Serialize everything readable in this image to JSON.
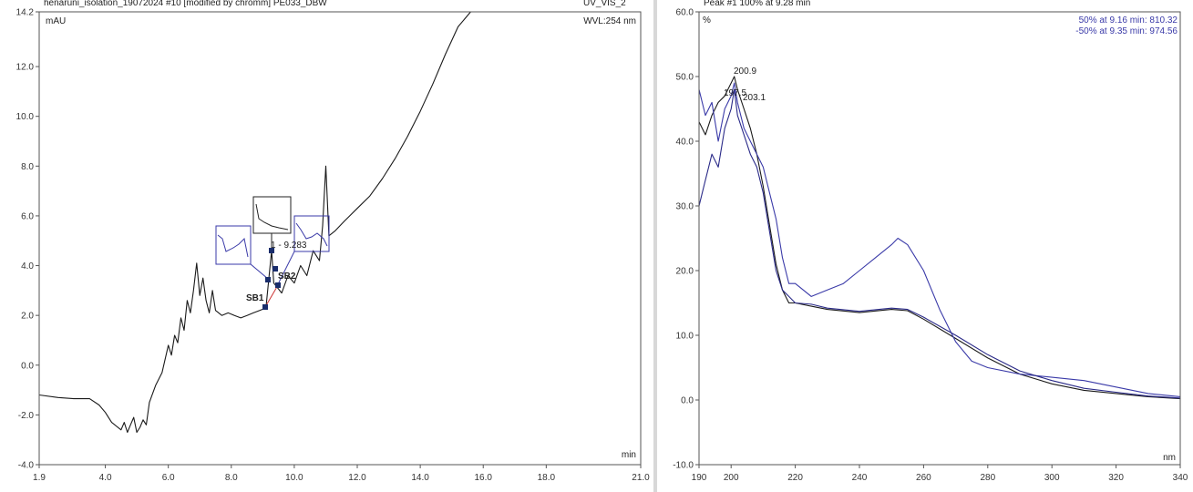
{
  "left_panel": {
    "header_text": "henaruni_isolation_19072024 #10 [modified by chromm]   PE033_DBW",
    "header_right": "UV_VIS_2",
    "y_unit": "mAU",
    "wavelength": "WVL:254 nm",
    "x_unit": "min",
    "peak_label": "1 - 9.283",
    "sb1_label": "SB1",
    "sb2_label": "SB2"
  },
  "right_panel": {
    "header_text": "Peak #1  100% at 9.28 min",
    "y_unit": "%",
    "x_unit": "nm",
    "legend": [
      {
        "text": "50% at 9.16 min:  810.32",
        "color": "#3a3aa8"
      },
      {
        "text": "-50% at 9.35 min:  974.56",
        "color": "#3a3aa8"
      }
    ],
    "peak_annotations": [
      "200.9",
      "197.5",
      "203.1"
    ]
  },
  "chart_data": [
    {
      "type": "line",
      "xlim": [
        1.9,
        21.0
      ],
      "ylim": [
        -4.0,
        14.2
      ],
      "x_ticks": [
        "1.9",
        "4.0",
        "6.0",
        "8.0",
        "10.0",
        "12.0",
        "14.0",
        "16.0",
        "18.0",
        "21.0"
      ],
      "x_tick_values": [
        1.9,
        4.0,
        6.0,
        8.0,
        10.0,
        12.0,
        14.0,
        16.0,
        18.0,
        21.0
      ],
      "y_ticks": [
        "-4.0",
        "-2.0",
        "0.0",
        "2.0",
        "4.0",
        "6.0",
        "8.0",
        "10.0",
        "12.0",
        "14.2"
      ],
      "y_tick_values": [
        -4.0,
        -2.0,
        0.0,
        2.0,
        4.0,
        6.0,
        8.0,
        10.0,
        12.0,
        14.2
      ],
      "series": [
        {
          "x": [
            1.9,
            2.5,
            3.0,
            3.5,
            3.8,
            4.0,
            4.2,
            4.5,
            4.6,
            4.7,
            4.8,
            4.9,
            5.0,
            5.1,
            5.2,
            5.3,
            5.4,
            5.6,
            5.8,
            6.0,
            6.1,
            6.2,
            6.3,
            6.4,
            6.5,
            6.6,
            6.7,
            6.8,
            6.9,
            7.0,
            7.1,
            7.2,
            7.3,
            7.4,
            7.5,
            7.7,
            7.9,
            8.1,
            8.3,
            8.5,
            8.7,
            8.9,
            9.1,
            9.28,
            9.35,
            9.6,
            9.8,
            10.0,
            10.2,
            10.4,
            10.6,
            10.8,
            10.9,
            11.0,
            11.1,
            11.3,
            11.6,
            12.0,
            12.4,
            12.8,
            13.2,
            13.6,
            14.0,
            14.4,
            14.8,
            15.2,
            15.6
          ],
          "y": [
            -1.2,
            -1.3,
            -1.35,
            -1.35,
            -1.6,
            -1.9,
            -2.3,
            -2.6,
            -2.3,
            -2.7,
            -2.4,
            -2.1,
            -2.7,
            -2.5,
            -2.2,
            -2.4,
            -1.5,
            -0.8,
            -0.3,
            0.8,
            0.4,
            1.2,
            0.9,
            1.9,
            1.4,
            2.6,
            2.1,
            3.0,
            4.1,
            2.8,
            3.5,
            2.6,
            2.1,
            3.0,
            2.2,
            2.0,
            2.1,
            2.0,
            1.9,
            2.0,
            2.1,
            2.2,
            2.3,
            4.6,
            3.3,
            2.9,
            3.6,
            3.3,
            4.0,
            3.6,
            4.6,
            4.2,
            5.6,
            8.0,
            5.2,
            5.4,
            5.8,
            6.3,
            6.8,
            7.5,
            8.3,
            9.2,
            10.2,
            11.3,
            12.5,
            13.6,
            14.2
          ]
        }
      ]
    },
    {
      "type": "line",
      "xlim": [
        190,
        340
      ],
      "ylim": [
        -10.0,
        60.0
      ],
      "x_ticks": [
        "190",
        "200",
        "220",
        "240",
        "260",
        "280",
        "300",
        "320",
        "340"
      ],
      "x_tick_values": [
        190,
        200,
        220,
        240,
        260,
        280,
        300,
        320,
        340
      ],
      "y_ticks": [
        "-10.0",
        "0.0",
        "10.0",
        "20.0",
        "30.0",
        "40.0",
        "50.0",
        "60.0"
      ],
      "y_tick_values": [
        -10.0,
        0.0,
        10.0,
        20.0,
        30.0,
        40.0,
        50.0,
        60.0
      ],
      "series": [
        {
          "color": "#1a1a1a",
          "x": [
            190,
            192,
            194,
            196,
            198,
            200,
            201,
            202,
            204,
            206,
            208,
            210,
            212,
            214,
            216,
            218,
            220,
            225,
            230,
            240,
            250,
            255,
            260,
            270,
            280,
            290,
            300,
            310,
            320,
            330,
            340
          ],
          "y": [
            43,
            41,
            44,
            46,
            47,
            49,
            50,
            48,
            45,
            42,
            38,
            33,
            27,
            21,
            17,
            15,
            15,
            14.5,
            14,
            13.5,
            14,
            13.8,
            12.5,
            9.5,
            6.5,
            4,
            2.5,
            1.5,
            1,
            0.5,
            0.2
          ]
        },
        {
          "color": "#3a3aa8",
          "x": [
            190,
            192,
            194,
            196,
            198,
            200,
            201,
            202,
            204,
            206,
            208,
            210,
            212,
            214,
            216,
            218,
            220,
            225,
            230,
            235,
            240,
            245,
            250,
            252,
            255,
            260,
            265,
            270,
            275,
            280,
            290,
            300,
            310,
            320,
            330,
            340
          ],
          "y": [
            48,
            44,
            46,
            40,
            45,
            47,
            49,
            46,
            42,
            40,
            38,
            36,
            32,
            28,
            22,
            18,
            18,
            16,
            17,
            18,
            20,
            22,
            24,
            25,
            24,
            20,
            14,
            9,
            6,
            5,
            4,
            3.5,
            3,
            2,
            1,
            0.5
          ]
        },
        {
          "color": "#2a2a88",
          "x": [
            190,
            192,
            194,
            196,
            198,
            200,
            201,
            202,
            204,
            206,
            208,
            210,
            212,
            214,
            216,
            218,
            220,
            225,
            230,
            240,
            250,
            255,
            260,
            270,
            280,
            290,
            300,
            310,
            320,
            330,
            340
          ],
          "y": [
            30,
            34,
            38,
            36,
            42,
            45,
            48,
            44,
            41,
            38,
            36,
            32,
            26,
            20,
            17,
            16,
            15,
            14.8,
            14.2,
            13.7,
            14.2,
            14,
            12.8,
            10,
            7,
            4.5,
            3,
            1.8,
            1.2,
            0.6,
            0.3
          ]
        }
      ]
    }
  ]
}
